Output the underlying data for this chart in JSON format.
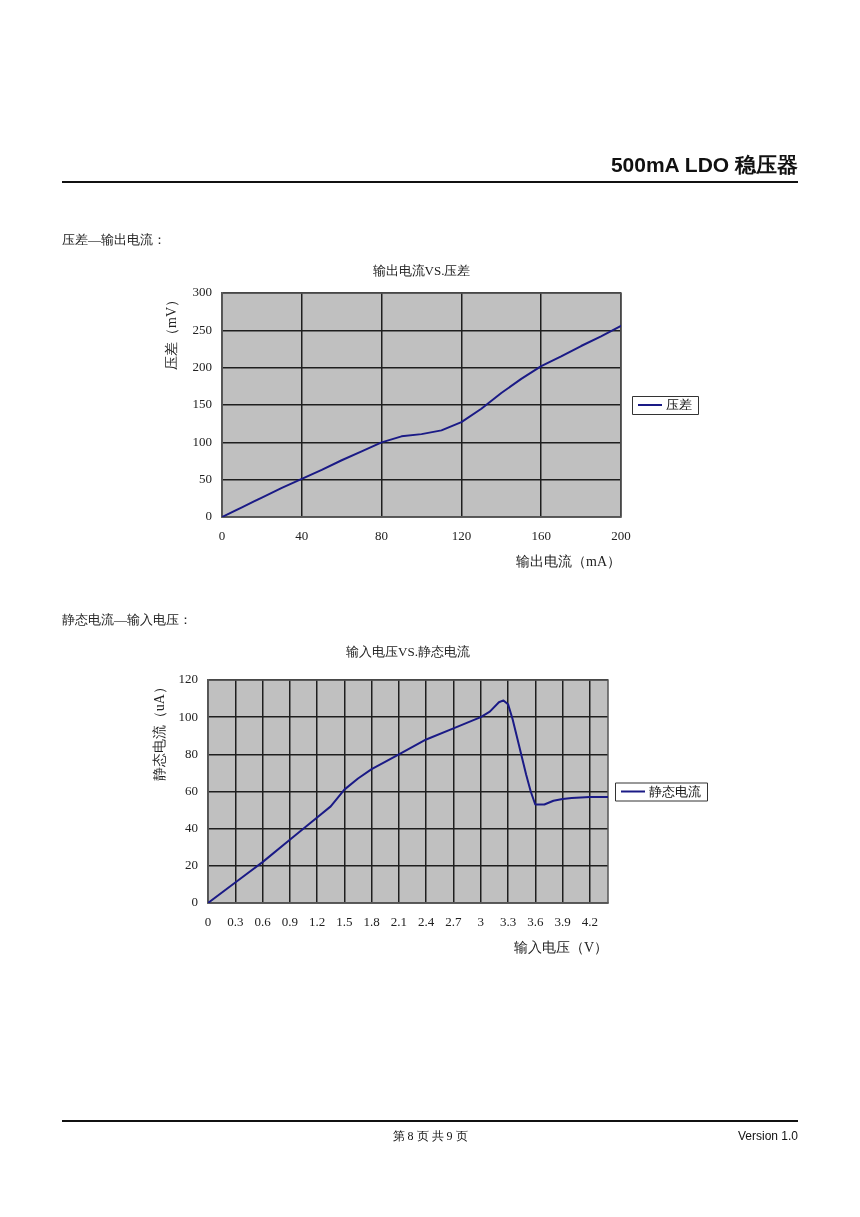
{
  "chart_data": [
    {
      "type": "line",
      "title": "输出电流VS.压差",
      "xlabel": "输出电流（mA）",
      "ylabel": "压差（mV）",
      "x": [
        0,
        10,
        20,
        30,
        40,
        50,
        60,
        70,
        80,
        90,
        100,
        110,
        120,
        130,
        140,
        150,
        160,
        170,
        180,
        190,
        200
      ],
      "series": [
        {
          "name": "压差",
          "color": "#1a1a86",
          "values": [
            0,
            13,
            26,
            39,
            51,
            63,
            76,
            88,
            100,
            108,
            111,
            116,
            127,
            145,
            166,
            185,
            202,
            215,
            229,
            242,
            256
          ]
        }
      ],
      "xlim": [
        0,
        200
      ],
      "xticks": [
        0,
        40,
        80,
        120,
        160,
        200
      ],
      "ylim": [
        0,
        300
      ],
      "yticks": [
        0,
        50,
        100,
        150,
        200,
        250,
        300
      ],
      "grid": true,
      "legend": "right",
      "marker": "none",
      "annotations": [
        "500mA LDO 稳压器",
        "压差—输出电流："
      ]
    },
    {
      "type": "line",
      "title": "输入电压VS.静态电流",
      "xlabel": "输入电压（V）",
      "ylabel": "静态电流（uA）",
      "x": [
        0,
        0.3,
        0.6,
        0.9,
        1.2,
        1.35,
        1.5,
        1.65,
        1.8,
        2.1,
        2.4,
        2.7,
        3,
        3.1,
        3.2,
        3.25,
        3.3,
        3.35,
        3.4,
        3.5,
        3.55,
        3.6,
        3.7,
        3.8,
        3.9,
        4,
        4.2,
        4.4
      ],
      "series": [
        {
          "name": "静态电流",
          "color": "#1a1a86",
          "values": [
            0,
            11,
            22,
            34,
            46,
            52,
            61,
            67,
            72,
            80,
            88,
            94,
            100,
            103,
            108,
            109,
            107,
            99,
            89,
            69,
            60,
            53,
            53,
            55,
            56,
            56.5,
            57,
            57
          ]
        }
      ],
      "xlim": [
        0,
        4.4
      ],
      "xticks": [
        0,
        0.3,
        0.6,
        0.9,
        1.2,
        1.5,
        1.8,
        2.1,
        2.4,
        2.7,
        3,
        3.3,
        3.6,
        3.9,
        4.2
      ],
      "ylim": [
        0,
        120
      ],
      "yticks": [
        0,
        20,
        40,
        60,
        80,
        100,
        120
      ],
      "grid": true,
      "legend": "right",
      "marker": "none",
      "annotations": [
        "静态电流—输入电压：",
        "第 8 页 共 9 页",
        "Version 1.0"
      ]
    }
  ]
}
